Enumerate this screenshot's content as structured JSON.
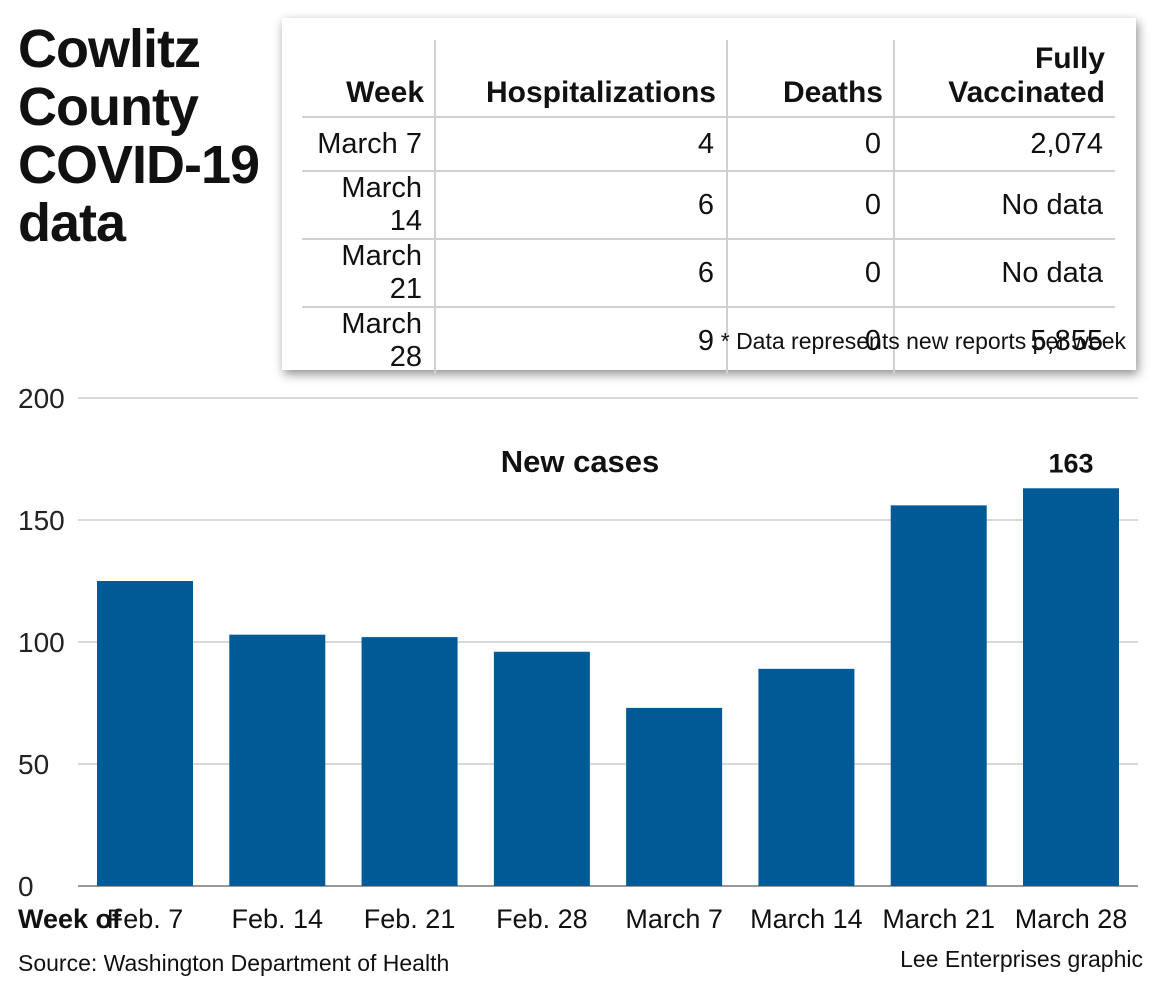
{
  "header": {
    "title_lines": [
      "Cowlitz",
      "County",
      "COVID-19",
      "data"
    ]
  },
  "table": {
    "columns": [
      "Week",
      "Hospitalizations",
      "Deaths",
      "Fully Vaccinated"
    ],
    "column_lines": [
      [
        "Week"
      ],
      [
        "Hospitalizations"
      ],
      [
        "Deaths"
      ],
      [
        "Fully",
        "Vaccinated"
      ]
    ],
    "rows": [
      {
        "week": "March 7",
        "hospitalizations": "4",
        "deaths": "0",
        "vaccinated": "2,074"
      },
      {
        "week": "March 14",
        "hospitalizations": "6",
        "deaths": "0",
        "vaccinated": "No data"
      },
      {
        "week": "March 21",
        "hospitalizations": "6",
        "deaths": "0",
        "vaccinated": "No data"
      },
      {
        "week": "March 28",
        "hospitalizations": "9",
        "deaths": "0",
        "vaccinated": "5,855"
      }
    ],
    "footnote": "* Data represents new reports per week"
  },
  "chart_data": {
    "type": "bar",
    "title": "New cases",
    "xlabel": "Week of",
    "ylabel": "",
    "categories": [
      "Feb. 7",
      "Feb. 14",
      "Feb. 21",
      "Feb. 28",
      "March 7",
      "March 14",
      "March 21",
      "March 28"
    ],
    "values": [
      125,
      103,
      102,
      96,
      73,
      89,
      156,
      163
    ],
    "ylim": [
      0,
      200
    ],
    "yticks": [
      0,
      50,
      100,
      150,
      200
    ],
    "data_labels": [
      {
        "index": 7,
        "text": "163"
      }
    ],
    "grid": true,
    "bar_color": "#005a96",
    "grid_color": "#cccccc"
  },
  "footer": {
    "source": "Source: Washington Department of Health",
    "credit": "Lee Enterprises graphic"
  }
}
